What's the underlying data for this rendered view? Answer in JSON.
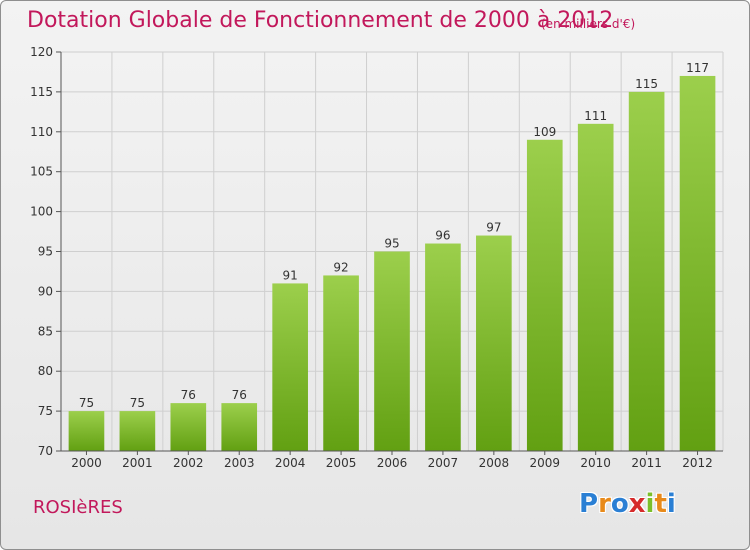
{
  "header": {
    "title": "Dotation Globale de Fonctionnement de 2000 à 2012",
    "unit": "(en milliers d'€)"
  },
  "footer": {
    "place": "ROSIèRES",
    "logo": {
      "text": "Proxiti",
      "letters": [
        {
          "char": "P",
          "color": "#2a7fd4"
        },
        {
          "char": "r",
          "color": "#e88a1a"
        },
        {
          "char": "o",
          "color": "#2a7fd4"
        },
        {
          "char": "x",
          "color": "#d62b2b"
        },
        {
          "char": "i",
          "color": "#7bbf2a"
        },
        {
          "char": "t",
          "color": "#e88a1a"
        },
        {
          "char": "i",
          "color": "#2a7fd4"
        }
      ]
    }
  },
  "colors": {
    "title": "#c2185b",
    "bar_top": "#9ccf4c",
    "bar_bottom": "#62a012",
    "grid": "#cfcfcf",
    "axis": "#555555"
  },
  "chart_data": {
    "type": "bar",
    "categories": [
      "2000",
      "2001",
      "2002",
      "2003",
      "2004",
      "2005",
      "2006",
      "2007",
      "2008",
      "2009",
      "2010",
      "2011",
      "2012"
    ],
    "values": [
      75,
      75,
      76,
      76,
      91,
      92,
      95,
      96,
      97,
      109,
      111,
      115,
      117
    ],
    "title": "Dotation Globale de Fonctionnement de 2000 à 2012",
    "subtitle": "(en milliers d'€)",
    "xlabel": "",
    "ylabel": "",
    "ylim": [
      70,
      120
    ],
    "yticks": [
      70,
      75,
      80,
      85,
      90,
      95,
      100,
      105,
      110,
      115,
      120
    ],
    "grid": true,
    "legend": "none"
  }
}
